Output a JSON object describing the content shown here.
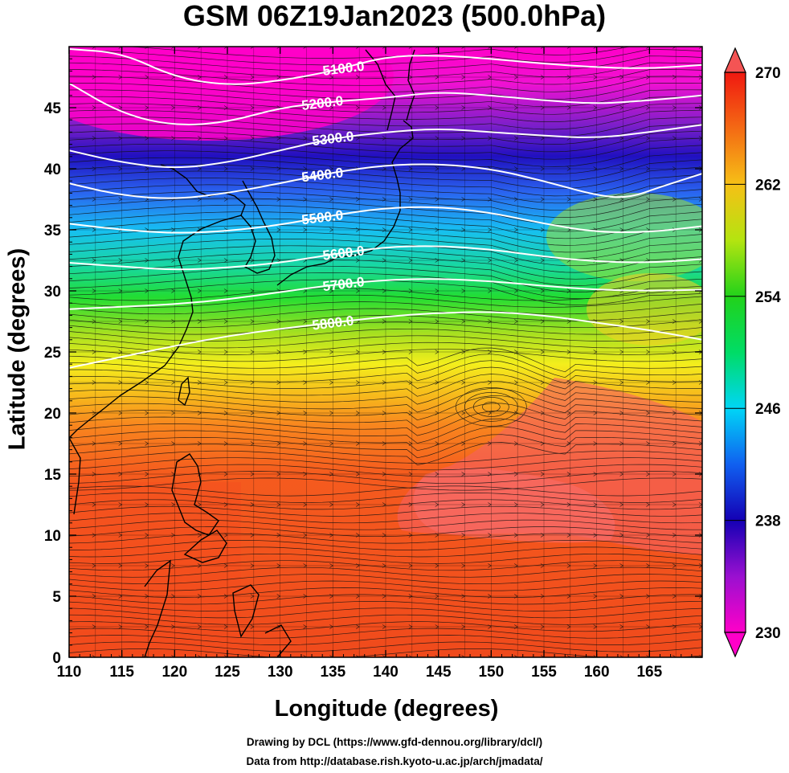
{
  "title": "GSM 06Z19Jan2023 (500.0hPa)",
  "xlabel": "Longitude (degrees)",
  "ylabel": "Latitude  (degrees)",
  "credits": [
    "Drawing by DCL (https://www.gfd-dennou.org/library/dcl/)",
    "Data from http://database.rish.kyoto-u.ac.jp/arch/jmadata/"
  ],
  "map": {
    "lon_range": [
      110,
      170
    ],
    "lat_range": [
      0,
      50
    ],
    "lon_ticks": [
      110,
      115,
      120,
      125,
      130,
      135,
      140,
      145,
      150,
      155,
      160,
      165
    ],
    "lat_ticks": [
      0,
      5,
      10,
      15,
      20,
      25,
      30,
      35,
      40,
      45
    ],
    "shading_variable": "temperature",
    "contour_variable": "geopotential height",
    "contours": [
      {
        "label": "5100.0",
        "points": [
          [
            110,
            49.8
          ],
          [
            115,
            49.5
          ],
          [
            120,
            47.5
          ],
          [
            125,
            46.8
          ],
          [
            130,
            47.2
          ],
          [
            135,
            48.0
          ],
          [
            140,
            49.2
          ],
          [
            145,
            49.3
          ],
          [
            150,
            49.0
          ],
          [
            155,
            48.6
          ],
          [
            160,
            48.3
          ],
          [
            165,
            48.2
          ],
          [
            170,
            48.5
          ]
        ]
      },
      {
        "label": "5200.0",
        "points": [
          [
            110,
            47.0
          ],
          [
            115,
            44.5
          ],
          [
            120,
            43.5
          ],
          [
            125,
            43.8
          ],
          [
            130,
            45.0
          ],
          [
            135,
            45.5
          ],
          [
            140,
            45.8
          ],
          [
            145,
            46.3
          ],
          [
            150,
            46.0
          ],
          [
            155,
            45.6
          ],
          [
            160,
            45.3
          ],
          [
            165,
            45.6
          ],
          [
            170,
            46.0
          ]
        ]
      },
      {
        "label": "5300.0",
        "points": [
          [
            110,
            41.5
          ],
          [
            115,
            40.5
          ],
          [
            120,
            40.0
          ],
          [
            125,
            40.5
          ],
          [
            130,
            41.5
          ],
          [
            135,
            42.5
          ],
          [
            140,
            43.0
          ],
          [
            145,
            43.3
          ],
          [
            150,
            43.0
          ],
          [
            155,
            42.7
          ],
          [
            160,
            42.5
          ],
          [
            165,
            43.0
          ],
          [
            170,
            43.6
          ]
        ]
      },
      {
        "label": "5400.0",
        "points": [
          [
            110,
            38.8
          ],
          [
            115,
            37.8
          ],
          [
            120,
            37.5
          ],
          [
            125,
            38.0
          ],
          [
            130,
            38.8
          ],
          [
            135,
            39.7
          ],
          [
            140,
            40.3
          ],
          [
            145,
            40.4
          ],
          [
            150,
            40.0
          ],
          [
            155,
            39.0
          ],
          [
            160,
            37.8
          ],
          [
            163,
            37.6
          ],
          [
            166,
            38.5
          ],
          [
            170,
            39.6
          ]
        ]
      },
      {
        "label": "5500.0",
        "points": [
          [
            110,
            35.5
          ],
          [
            115,
            35.0
          ],
          [
            120,
            34.7
          ],
          [
            125,
            34.9
          ],
          [
            130,
            35.4
          ],
          [
            135,
            36.2
          ],
          [
            140,
            36.8
          ],
          [
            145,
            36.9
          ],
          [
            150,
            36.4
          ],
          [
            155,
            35.5
          ],
          [
            160,
            34.8
          ],
          [
            165,
            34.8
          ],
          [
            170,
            35.3
          ]
        ]
      },
      {
        "label": "5600.0",
        "points": [
          [
            110,
            32.3
          ],
          [
            115,
            32.0
          ],
          [
            120,
            31.7
          ],
          [
            125,
            31.9
          ],
          [
            130,
            32.3
          ],
          [
            135,
            33.0
          ],
          [
            140,
            33.6
          ],
          [
            145,
            33.7
          ],
          [
            150,
            33.4
          ],
          [
            155,
            32.8
          ],
          [
            160,
            32.4
          ],
          [
            165,
            32.3
          ],
          [
            170,
            32.6
          ]
        ]
      },
      {
        "label": "5700.0",
        "points": [
          [
            110,
            28.5
          ],
          [
            115,
            28.7
          ],
          [
            120,
            28.9
          ],
          [
            125,
            29.3
          ],
          [
            130,
            29.9
          ],
          [
            135,
            30.5
          ],
          [
            140,
            30.9
          ],
          [
            145,
            31.0
          ],
          [
            150,
            30.8
          ],
          [
            155,
            30.4
          ],
          [
            160,
            30.1
          ],
          [
            165,
            30.0
          ],
          [
            170,
            30.1
          ]
        ]
      },
      {
        "label": "5800.0",
        "points": [
          [
            110,
            23.7
          ],
          [
            115,
            24.6
          ],
          [
            120,
            25.5
          ],
          [
            125,
            26.3
          ],
          [
            130,
            26.9
          ],
          [
            135,
            27.4
          ],
          [
            140,
            27.9
          ],
          [
            145,
            28.2
          ],
          [
            150,
            28.3
          ],
          [
            155,
            28.0
          ],
          [
            160,
            27.4
          ],
          [
            165,
            26.8
          ],
          [
            170,
            26.0
          ]
        ]
      }
    ]
  },
  "colorbar": {
    "min": 230,
    "max": 270,
    "tick_labels": [
      "270",
      "262",
      "254",
      "246",
      "238",
      "230"
    ]
  }
}
